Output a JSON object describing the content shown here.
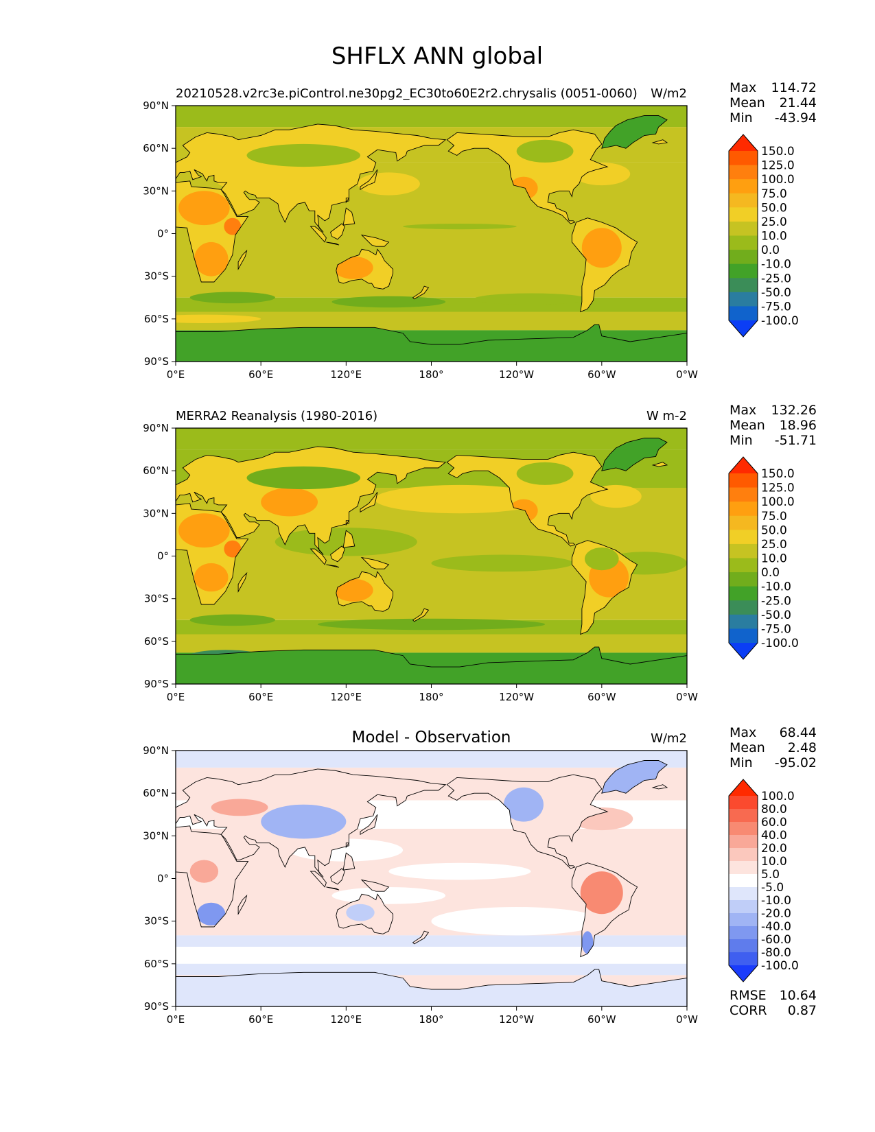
{
  "title": "SHFLX ANN global",
  "lon_ticks": [
    "0°E",
    "60°E",
    "120°E",
    "180°",
    "120°W",
    "60°W",
    "0°W"
  ],
  "lat_ticks": [
    "90°N",
    "60°N",
    "30°N",
    "0°",
    "30°S",
    "60°S",
    "90°S"
  ],
  "panels": [
    {
      "left_title": "20210528.v2rc3e.piControl.ne30pg2_EC30to60E2r2.chrysalis (0051-0060)",
      "center_title": "",
      "units": "W/m2",
      "stats": [
        {
          "label": "Max",
          "value": "114.72"
        },
        {
          "label": "Mean",
          "value": "21.44"
        },
        {
          "label": "Min",
          "value": "-43.94"
        }
      ],
      "extra_stats": [],
      "colorbar": {
        "labels": [
          "150.0",
          "125.0",
          "100.0",
          "75.0",
          "50.0",
          "25.0",
          "10.0",
          "0.0",
          "-10.0",
          "-25.0",
          "-50.0",
          "-75.0",
          "-100.0"
        ],
        "colors": [
          "#ff2a00",
          "#ff5a00",
          "#ff7f0e",
          "#ff9f10",
          "#f5b820",
          "#f1cf26",
          "#c6c322",
          "#9bbb1b",
          "#71ad1c",
          "#42a228",
          "#3b8d58",
          "#2a7da0",
          "#1063cc",
          "#0b3ef5"
        ]
      },
      "field": "model"
    },
    {
      "left_title": "MERRA2 Reanalysis (1980-2016)",
      "center_title": "",
      "units": "W m-2",
      "stats": [
        {
          "label": "Max",
          "value": "132.26"
        },
        {
          "label": "Mean",
          "value": "18.96"
        },
        {
          "label": "Min",
          "value": "-51.71"
        }
      ],
      "extra_stats": [],
      "colorbar": {
        "labels": [
          "150.0",
          "125.0",
          "100.0",
          "75.0",
          "50.0",
          "25.0",
          "10.0",
          "0.0",
          "-10.0",
          "-25.0",
          "-50.0",
          "-75.0",
          "-100.0"
        ],
        "colors": [
          "#ff2a00",
          "#ff5a00",
          "#ff7f0e",
          "#ff9f10",
          "#f5b820",
          "#f1cf26",
          "#c6c322",
          "#9bbb1b",
          "#71ad1c",
          "#42a228",
          "#3b8d58",
          "#2a7da0",
          "#1063cc",
          "#0b3ef5"
        ]
      },
      "field": "obs"
    },
    {
      "left_title": "",
      "center_title": "Model - Observation",
      "units": "W/m2",
      "stats": [
        {
          "label": "Max",
          "value": "68.44"
        },
        {
          "label": "Mean",
          "value": "2.48"
        },
        {
          "label": "Min",
          "value": "-95.02"
        }
      ],
      "extra_stats": [
        {
          "label": "RMSE",
          "value": "10.64"
        },
        {
          "label": "CORR",
          "value": "0.87"
        }
      ],
      "colorbar": {
        "labels": [
          "100.0",
          "80.0",
          "60.0",
          "40.0",
          "20.0",
          "10.0",
          "5.0",
          "-5.0",
          "-10.0",
          "-20.0",
          "-40.0",
          "-60.0",
          "-80.0",
          "-100.0"
        ],
        "colors": [
          "#ff2a00",
          "#fb4a2e",
          "#f86a50",
          "#f88a72",
          "#f9a898",
          "#fbc8bd",
          "#fde4de",
          "#ffffff",
          "#dfe6fb",
          "#c0cef8",
          "#a0b4f4",
          "#7f98f0",
          "#5f7cec",
          "#3f5ff0",
          "#1a3cfb"
        ]
      },
      "field": "diff"
    }
  ]
}
